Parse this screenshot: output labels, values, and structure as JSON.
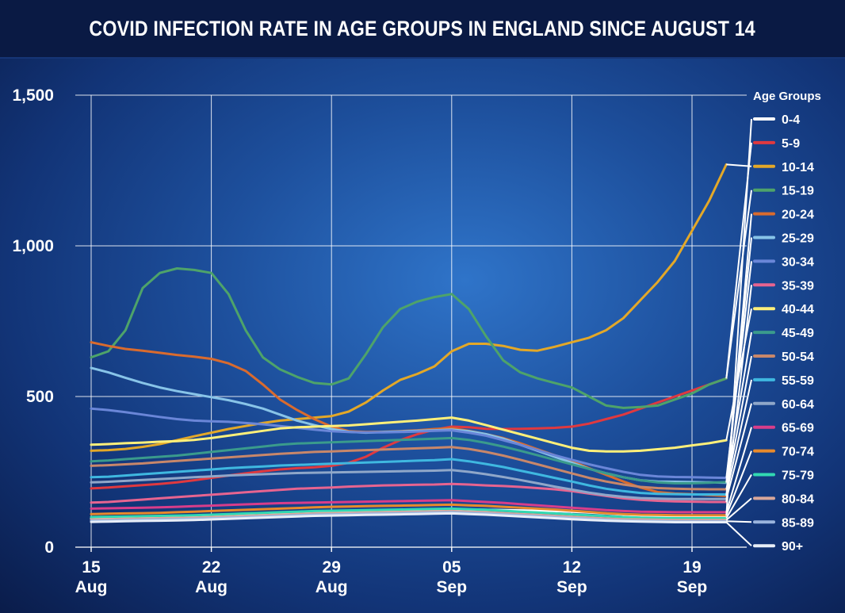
{
  "header": {
    "title": "COVID INFECTION RATE IN AGE GROUPS IN ENGLAND SINCE AUGUST 14"
  },
  "chart_data": {
    "type": "line",
    "title": "COVID INFECTION RATE IN AGE GROUPS IN ENGLAND SINCE AUGUST 14",
    "xlabel": "",
    "ylabel": "",
    "ylim": [
      0,
      1500
    ],
    "y_ticks": [
      0,
      500,
      1000,
      1500
    ],
    "y_tick_labels": [
      "0",
      "500",
      "1,000",
      "1,500"
    ],
    "x_ticks": [
      {
        "day": 0,
        "top": "15",
        "bottom": "Aug"
      },
      {
        "day": 7,
        "top": "22",
        "bottom": "Aug"
      },
      {
        "day": 14,
        "top": "29",
        "bottom": "Aug"
      },
      {
        "day": 21,
        "top": "05",
        "bottom": "Sep"
      },
      {
        "day": 28,
        "top": "12",
        "bottom": "Sep"
      },
      {
        "day": 35,
        "top": "19",
        "bottom": "Sep"
      }
    ],
    "x_range_days": [
      0,
      37
    ],
    "grid": true,
    "legend_title": "Age Groups",
    "legend_position": "right",
    "x_day_offsets": [
      0,
      1,
      2,
      3,
      4,
      5,
      6,
      7,
      8,
      9,
      10,
      11,
      12,
      13,
      14,
      15,
      16,
      17,
      18,
      19,
      20,
      21,
      22,
      23,
      24,
      25,
      26,
      27,
      28,
      29,
      30,
      31,
      32,
      33,
      34,
      35,
      36,
      37
    ],
    "series": [
      {
        "name": "0-4",
        "color": "#ffffff",
        "values": [
          95,
          95,
          96,
          97,
          98,
          100,
          102,
          104,
          106,
          108,
          110,
          112,
          114,
          116,
          118,
          120,
          121,
          122,
          123,
          124,
          125,
          126,
          125,
          124,
          123,
          122,
          121,
          120,
          118,
          115,
          112,
          108,
          105,
          103,
          102,
          102,
          103,
          104
        ]
      },
      {
        "name": "5-9",
        "color": "#e0393f",
        "values": [
          195,
          198,
          202,
          206,
          210,
          215,
          222,
          230,
          238,
          245,
          252,
          258,
          262,
          265,
          270,
          280,
          300,
          330,
          355,
          375,
          390,
          400,
          398,
          393,
          392,
          393,
          394,
          396,
          400,
          410,
          425,
          440,
          460,
          480,
          500,
          520,
          540,
          560
        ]
      },
      {
        "name": "10-14",
        "color": "#e3a828",
        "values": [
          320,
          322,
          326,
          333,
          342,
          355,
          368,
          380,
          392,
          402,
          412,
          420,
          425,
          430,
          435,
          450,
          480,
          520,
          555,
          575,
          600,
          650,
          675,
          675,
          668,
          655,
          652,
          665,
          680,
          695,
          720,
          760,
          820,
          880,
          950,
          1050,
          1150,
          1270
        ]
      },
      {
        "name": "15-19",
        "color": "#4ea36a",
        "values": [
          630,
          650,
          720,
          860,
          910,
          925,
          920,
          910,
          840,
          720,
          630,
          590,
          565,
          545,
          540,
          560,
          640,
          730,
          790,
          815,
          830,
          840,
          790,
          700,
          620,
          580,
          560,
          545,
          530,
          500,
          470,
          462,
          465,
          470,
          490,
          510,
          540,
          560
        ]
      },
      {
        "name": "20-24",
        "color": "#d96b2e",
        "values": [
          680,
          668,
          658,
          652,
          645,
          638,
          632,
          625,
          610,
          585,
          540,
          490,
          455,
          425,
          400,
          385,
          382,
          383,
          385,
          388,
          392,
          395,
          386,
          375,
          362,
          345,
          325,
          305,
          285,
          262,
          240,
          218,
          198,
          183,
          178,
          176,
          173,
          170
        ]
      },
      {
        "name": "25-29",
        "color": "#88c4e8",
        "values": [
          595,
          580,
          562,
          545,
          530,
          518,
          508,
          498,
          488,
          475,
          460,
          440,
          420,
          405,
          392,
          383,
          380,
          382,
          384,
          386,
          388,
          390,
          385,
          375,
          360,
          340,
          320,
          300,
          280,
          260,
          245,
          232,
          222,
          218,
          217,
          216,
          215,
          214
        ]
      },
      {
        "name": "30-34",
        "color": "#6a86d8",
        "values": [
          460,
          455,
          448,
          440,
          432,
          425,
          420,
          418,
          416,
          412,
          408,
          402,
          396,
          390,
          385,
          382,
          381,
          381,
          382,
          384,
          386,
          388,
          380,
          370,
          355,
          340,
          322,
          305,
          290,
          275,
          262,
          250,
          240,
          235,
          233,
          232,
          231,
          230
        ]
      },
      {
        "name": "35-39",
        "color": "#e76490",
        "values": [
          148,
          150,
          154,
          158,
          162,
          166,
          170,
          174,
          178,
          182,
          186,
          190,
          194,
          196,
          198,
          201,
          203,
          205,
          206,
          207,
          208,
          210,
          208,
          205,
          203,
          200,
          196,
          192,
          186,
          178,
          170,
          162,
          157,
          154,
          152,
          151,
          150,
          150
        ]
      },
      {
        "name": "40-44",
        "color": "#fff07a",
        "values": [
          340,
          342,
          345,
          347,
          350,
          352,
          356,
          362,
          370,
          378,
          386,
          394,
          398,
          400,
          402,
          404,
          408,
          412,
          416,
          420,
          425,
          430,
          420,
          405,
          390,
          375,
          360,
          345,
          330,
          320,
          318,
          318,
          320,
          325,
          330,
          338,
          345,
          355
        ]
      },
      {
        "name": "45-49",
        "color": "#3a9b8c",
        "values": [
          285,
          288,
          292,
          296,
          300,
          304,
          310,
          316,
          322,
          328,
          334,
          340,
          344,
          346,
          348,
          350,
          352,
          354,
          356,
          358,
          360,
          362,
          356,
          346,
          334,
          320,
          305,
          290,
          275,
          260,
          245,
          232,
          222,
          215,
          212,
          212,
          214,
          216
        ]
      },
      {
        "name": "50-54",
        "color": "#c8876a",
        "values": [
          270,
          272,
          275,
          278,
          282,
          286,
          290,
          294,
          298,
          302,
          306,
          310,
          313,
          316,
          318,
          320,
          322,
          324,
          326,
          328,
          330,
          332,
          326,
          316,
          304,
          290,
          275,
          260,
          245,
          230,
          218,
          208,
          200,
          196,
          194,
          193,
          192,
          192
        ]
      },
      {
        "name": "55-59",
        "color": "#3fb8e0",
        "values": [
          232,
          234,
          238,
          242,
          246,
          250,
          254,
          258,
          262,
          265,
          268,
          271,
          273,
          275,
          277,
          279,
          281,
          283,
          285,
          287,
          289,
          292,
          285,
          276,
          266,
          254,
          242,
          230,
          218,
          205,
          194,
          186,
          180,
          177,
          176,
          175,
          175,
          175
        ]
      },
      {
        "name": "60-64",
        "color": "#8fa7c9",
        "values": [
          215,
          217,
          220,
          223,
          226,
          229,
          232,
          235,
          238,
          240,
          242,
          244,
          246,
          247,
          248,
          249,
          250,
          251,
          252,
          253,
          254,
          256,
          250,
          242,
          233,
          223,
          212,
          201,
          191,
          181,
          173,
          167,
          163,
          161,
          160,
          160,
          160,
          160
        ]
      },
      {
        "name": "65-69",
        "color": "#d83d8a",
        "values": [
          128,
          129,
          130,
          131,
          132,
          134,
          136,
          138,
          140,
          142,
          144,
          146,
          147,
          148,
          149,
          150,
          151,
          152,
          153,
          154,
          155,
          156,
          153,
          150,
          147,
          143,
          139,
          135,
          131,
          127,
          123,
          120,
          118,
          117,
          116,
          116,
          116,
          116
        ]
      },
      {
        "name": "70-74",
        "color": "#e88a2c",
        "values": [
          110,
          111,
          112,
          113,
          114,
          116,
          118,
          120,
          122,
          124,
          126,
          128,
          130,
          132,
          134,
          135,
          136,
          137,
          138,
          139,
          140,
          141,
          139,
          137,
          134,
          131,
          128,
          125,
          121,
          117,
          113,
          110,
          108,
          107,
          106,
          106,
          106,
          106
        ]
      },
      {
        "name": "75-79",
        "color": "#32d9b2",
        "values": [
          100,
          101,
          102,
          103,
          104,
          105,
          106,
          108,
          110,
          112,
          114,
          116,
          118,
          120,
          121,
          122,
          123,
          124,
          125,
          126,
          127,
          128,
          126,
          124,
          121,
          118,
          115,
          112,
          109,
          106,
          103,
          100,
          98,
          97,
          96,
          96,
          96,
          96
        ]
      },
      {
        "name": "80-84",
        "color": "#d9a79a",
        "values": [
          92,
          93,
          94,
          95,
          96,
          97,
          98,
          100,
          102,
          104,
          106,
          108,
          110,
          112,
          113,
          114,
          115,
          116,
          117,
          118,
          119,
          120,
          118,
          116,
          113,
          110,
          107,
          104,
          101,
          98,
          95,
          93,
          92,
          91,
          90,
          90,
          90,
          90
        ]
      },
      {
        "name": "85-89",
        "color": "#9ab4dd",
        "values": [
          88,
          89,
          90,
          91,
          92,
          93,
          94,
          96,
          98,
          100,
          102,
          104,
          106,
          108,
          109,
          110,
          111,
          112,
          113,
          114,
          115,
          116,
          114,
          112,
          109,
          106,
          103,
          100,
          97,
          94,
          91,
          89,
          88,
          87,
          86,
          86,
          86,
          86
        ]
      },
      {
        "name": "90+",
        "color": "#e8eef8",
        "values": [
          84,
          85,
          86,
          87,
          88,
          89,
          90,
          92,
          94,
          96,
          98,
          100,
          102,
          104,
          105,
          106,
          107,
          108,
          109,
          110,
          111,
          112,
          110,
          108,
          105,
          102,
          99,
          96,
          93,
          90,
          88,
          86,
          85,
          84,
          83,
          83,
          83,
          83
        ]
      }
    ]
  }
}
